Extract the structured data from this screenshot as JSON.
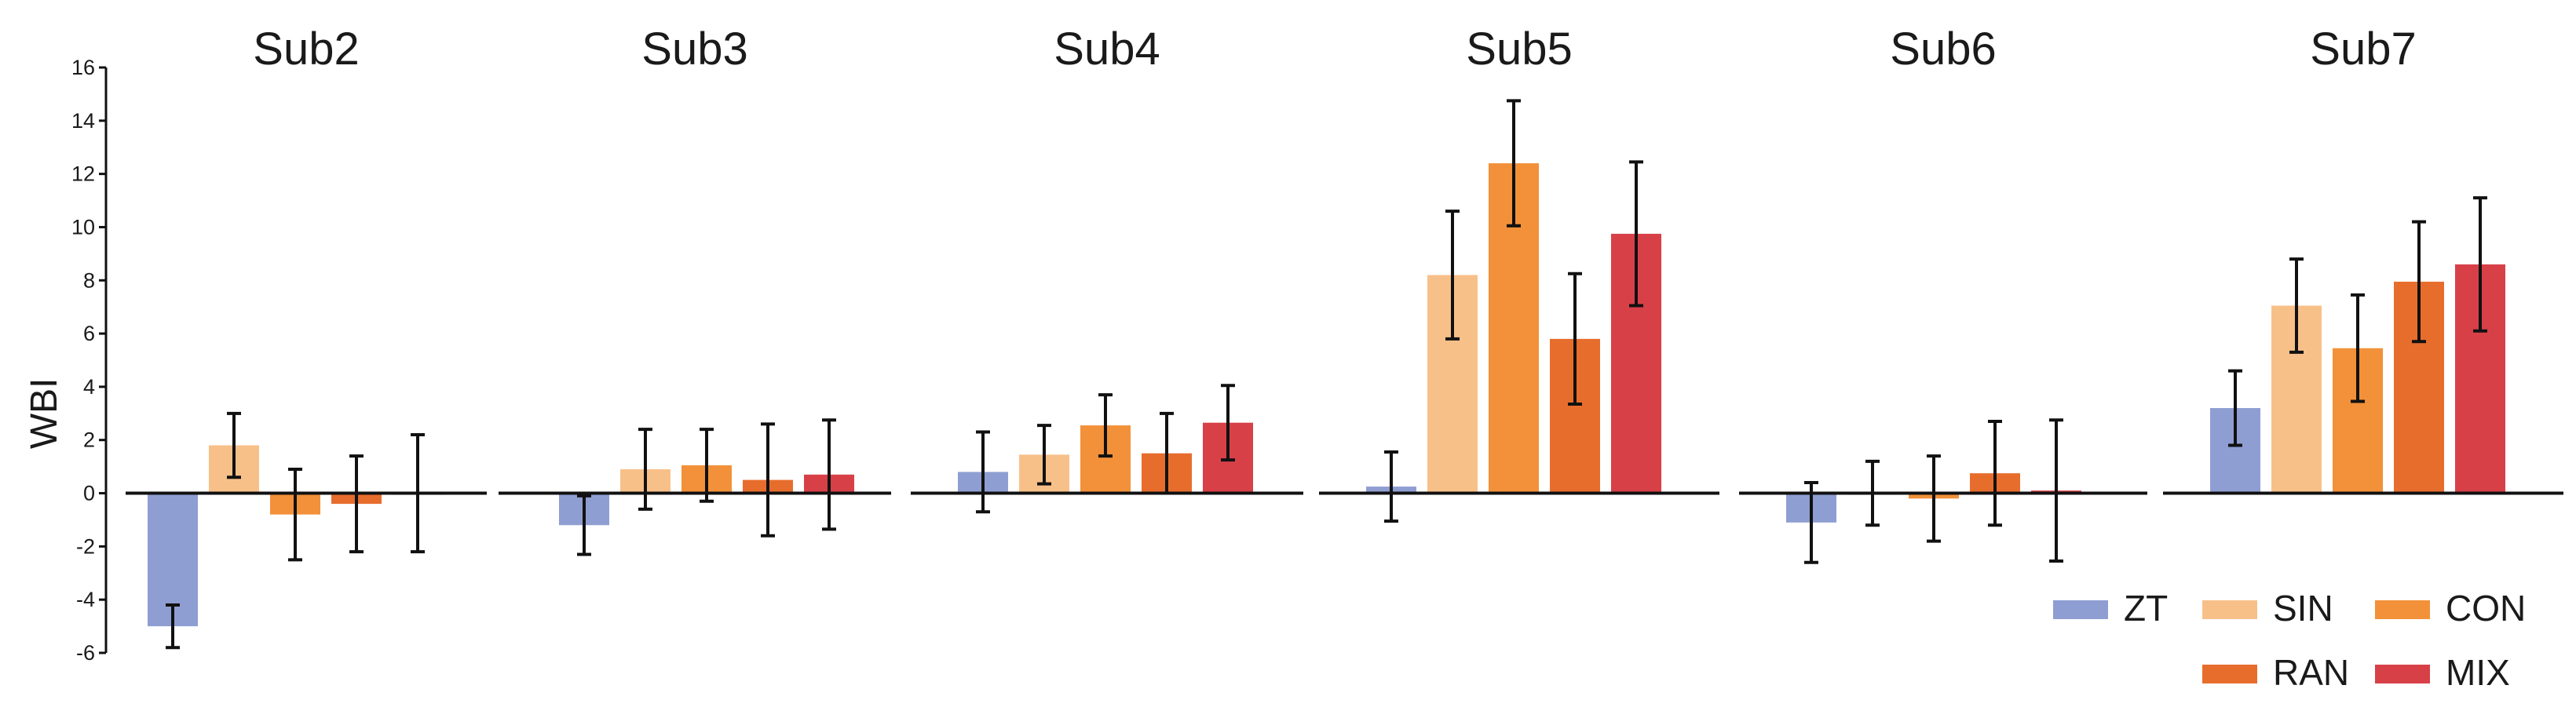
{
  "chart_data": {
    "type": "bar",
    "ylabel": "WBI",
    "xlabel": "",
    "ylim": [
      -6,
      16
    ],
    "yticks": [
      -6,
      -4,
      -2,
      0,
      2,
      4,
      6,
      8,
      10,
      12,
      14,
      16
    ],
    "panels": [
      "Sub2",
      "Sub3",
      "Sub4",
      "Sub5",
      "Sub6",
      "Sub7"
    ],
    "legend_position": "bottom-right",
    "series": [
      {
        "name": "ZT",
        "color": "#8f9ed2",
        "values": [
          -5.0,
          -1.2,
          0.8,
          0.25,
          -1.1,
          3.2
        ],
        "errors": [
          0.8,
          1.1,
          1.5,
          1.3,
          1.5,
          1.4
        ]
      },
      {
        "name": "SIN",
        "color": "#f8c089",
        "values": [
          1.8,
          0.9,
          1.45,
          8.2,
          0.0,
          7.05
        ],
        "errors": [
          1.2,
          1.5,
          1.1,
          2.4,
          1.2,
          1.75
        ]
      },
      {
        "name": "CON",
        "color": "#f29139",
        "values": [
          -0.8,
          1.05,
          2.55,
          12.4,
          -0.2,
          5.45
        ],
        "errors": [
          1.7,
          1.35,
          1.15,
          2.35,
          1.6,
          2.0
        ]
      },
      {
        "name": "RAN",
        "color": "#e76d2d",
        "values": [
          -0.4,
          0.5,
          1.5,
          5.8,
          0.75,
          7.95
        ],
        "errors": [
          1.8,
          2.1,
          1.5,
          2.45,
          1.95,
          2.25
        ]
      },
      {
        "name": "MIX",
        "color": "#d84048",
        "values": [
          0.0,
          0.7,
          2.65,
          9.75,
          0.1,
          8.6
        ],
        "errors": [
          2.2,
          2.05,
          1.4,
          2.7,
          2.65,
          2.5
        ]
      }
    ]
  }
}
